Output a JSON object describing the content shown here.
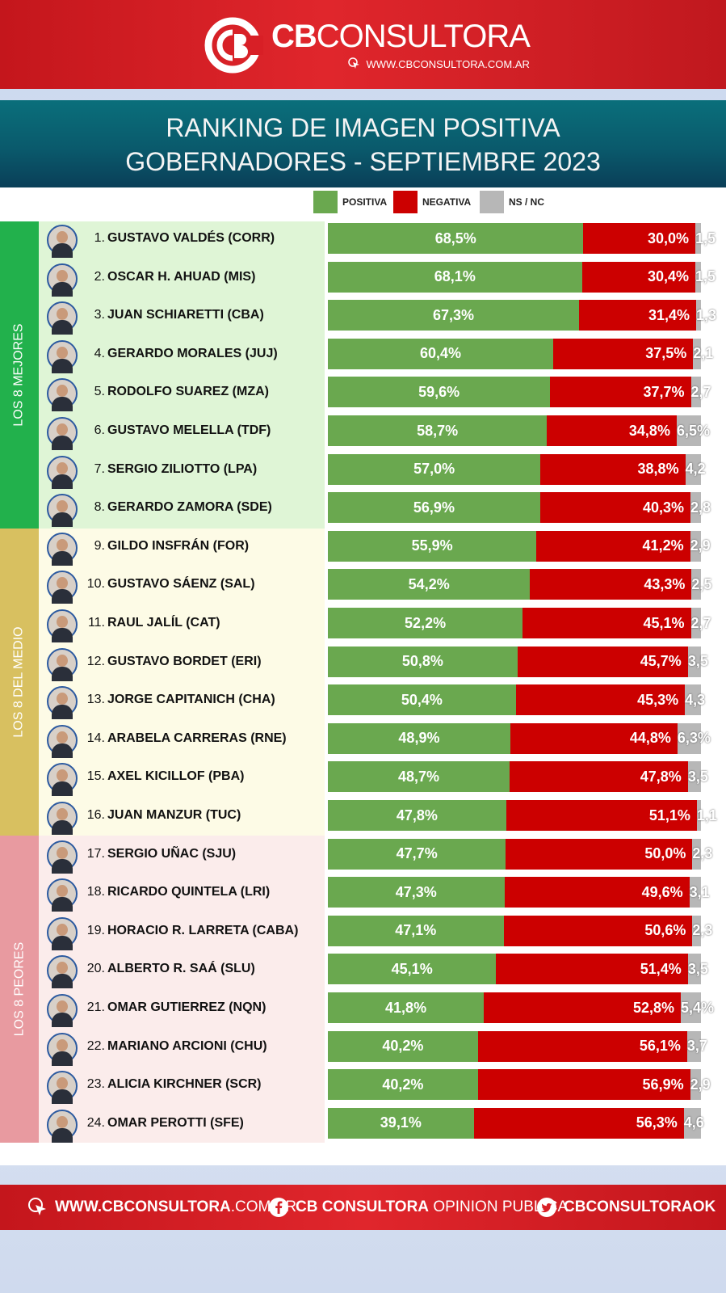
{
  "header": {
    "brand_bold": "CB",
    "brand_light": "CONSULTORA",
    "url": "WWW.CBCONSULTORA.COM.AR"
  },
  "title": {
    "line1": "RANKING DE IMAGEN POSITIVA",
    "line2": "GOBERNADORES - SEPTIEMBRE 2023"
  },
  "legend": [
    {
      "label": "POSITIVA",
      "color": "#6aa84f"
    },
    {
      "label": "NEGATIVA",
      "color": "#cc0000"
    },
    {
      "label": "NS / NC",
      "color": "#b7b7b7"
    }
  ],
  "groups": [
    {
      "label": "LOS 8 MEJORES",
      "side_color": "#22b14c",
      "bg_color": "#dff5d6"
    },
    {
      "label": "LOS 8 DEL MEDIO",
      "side_color": "#d8c060",
      "bg_color": "#fdfbe6"
    },
    {
      "label": "LOS 8 PEORES",
      "side_color": "#e89aa0",
      "bg_color": "#fbeceb"
    }
  ],
  "chart_data": {
    "type": "bar",
    "stacked": true,
    "orientation": "horizontal",
    "series_names": [
      "POSITIVA",
      "NEGATIVA",
      "NS / NC"
    ],
    "rows": [
      {
        "rank": "1.",
        "name": "GUSTAVO VALDÉS (CORR)",
        "pos": 68.5,
        "neg": 30.0,
        "ns": 1.5,
        "pos_label": "68,5%",
        "neg_label": "30,0%",
        "ns_label": "1,5"
      },
      {
        "rank": "2.",
        "name": "OSCAR H. AHUAD (MIS)",
        "pos": 68.1,
        "neg": 30.4,
        "ns": 1.5,
        "pos_label": "68,1%",
        "neg_label": "30,4%",
        "ns_label": "1,5"
      },
      {
        "rank": "3.",
        "name": "JUAN SCHIARETTI (CBA)",
        "pos": 67.3,
        "neg": 31.4,
        "ns": 1.3,
        "pos_label": "67,3%",
        "neg_label": "31,4%",
        "ns_label": "1,3"
      },
      {
        "rank": "4.",
        "name": "GERARDO MORALES (JUJ)",
        "pos": 60.4,
        "neg": 37.5,
        "ns": 2.1,
        "pos_label": "60,4%",
        "neg_label": "37,5%",
        "ns_label": "2,1"
      },
      {
        "rank": "5.",
        "name": "RODOLFO SUAREZ (MZA)",
        "pos": 59.6,
        "neg": 37.7,
        "ns": 2.7,
        "pos_label": "59,6%",
        "neg_label": "37,7%",
        "ns_label": "2,7"
      },
      {
        "rank": "6.",
        "name": "GUSTAVO MELELLA (TDF)",
        "pos": 58.7,
        "neg": 34.8,
        "ns": 6.5,
        "pos_label": "58,7%",
        "neg_label": "34,8%",
        "ns_label": "6,5%"
      },
      {
        "rank": "7.",
        "name": "SERGIO ZILIOTTO (LPA)",
        "pos": 57.0,
        "neg": 38.8,
        "ns": 4.2,
        "pos_label": "57,0%",
        "neg_label": "38,8%",
        "ns_label": "4,2"
      },
      {
        "rank": "8.",
        "name": "GERARDO ZAMORA (SDE)",
        "pos": 56.9,
        "neg": 40.3,
        "ns": 2.8,
        "pos_label": "56,9%",
        "neg_label": "40,3%",
        "ns_label": "2,8"
      },
      {
        "rank": "9.",
        "name": "GILDO INSFRÁN (FOR)",
        "pos": 55.9,
        "neg": 41.2,
        "ns": 2.9,
        "pos_label": "55,9%",
        "neg_label": "41,2%",
        "ns_label": "2,9"
      },
      {
        "rank": "10.",
        "name": "GUSTAVO SÁENZ (SAL)",
        "pos": 54.2,
        "neg": 43.3,
        "ns": 2.5,
        "pos_label": "54,2%",
        "neg_label": "43,3%",
        "ns_label": "2,5"
      },
      {
        "rank": "11.",
        "name": "RAUL JALÍL (CAT)",
        "pos": 52.2,
        "neg": 45.1,
        "ns": 2.7,
        "pos_label": "52,2%",
        "neg_label": "45,1%",
        "ns_label": "2,7"
      },
      {
        "rank": "12.",
        "name": "GUSTAVO BORDET (ERI)",
        "pos": 50.8,
        "neg": 45.7,
        "ns": 3.5,
        "pos_label": "50,8%",
        "neg_label": "45,7%",
        "ns_label": "3,5"
      },
      {
        "rank": "13.",
        "name": "JORGE CAPITANICH (CHA)",
        "pos": 50.4,
        "neg": 45.3,
        "ns": 4.3,
        "pos_label": "50,4%",
        "neg_label": "45,3%",
        "ns_label": "4,3"
      },
      {
        "rank": "14.",
        "name": "ARABELA CARRERAS (RNE)",
        "pos": 48.9,
        "neg": 44.8,
        "ns": 6.3,
        "pos_label": "48,9%",
        "neg_label": "44,8%",
        "ns_label": "6,3%"
      },
      {
        "rank": "15.",
        "name": "AXEL KICILLOF (PBA)",
        "pos": 48.7,
        "neg": 47.8,
        "ns": 3.5,
        "pos_label": "48,7%",
        "neg_label": "47,8%",
        "ns_label": "3,5"
      },
      {
        "rank": "16.",
        "name": "JUAN MANZUR (TUC)",
        "pos": 47.8,
        "neg": 51.1,
        "ns": 1.1,
        "pos_label": "47,8%",
        "neg_label": "51,1%",
        "ns_label": "1,1"
      },
      {
        "rank": "17.",
        "name": "SERGIO UÑAC (SJU)",
        "pos": 47.7,
        "neg": 50.0,
        "ns": 2.3,
        "pos_label": "47,7%",
        "neg_label": "50,0%",
        "ns_label": "2,3"
      },
      {
        "rank": "18.",
        "name": "RICARDO QUINTELA (LRI)",
        "pos": 47.3,
        "neg": 49.6,
        "ns": 3.1,
        "pos_label": "47,3%",
        "neg_label": "49,6%",
        "ns_label": "3,1"
      },
      {
        "rank": "19.",
        "name": "HORACIO R. LARRETA (CABA)",
        "pos": 47.1,
        "neg": 50.6,
        "ns": 2.3,
        "pos_label": "47,1%",
        "neg_label": "50,6%",
        "ns_label": "2,3"
      },
      {
        "rank": "20.",
        "name": "ALBERTO R. SAÁ (SLU)",
        "pos": 45.1,
        "neg": 51.4,
        "ns": 3.5,
        "pos_label": "45,1%",
        "neg_label": "51,4%",
        "ns_label": "3,5"
      },
      {
        "rank": "21.",
        "name": "OMAR GUTIERREZ (NQN)",
        "pos": 41.8,
        "neg": 52.8,
        "ns": 5.4,
        "pos_label": "41,8%",
        "neg_label": "52,8%",
        "ns_label": "5,4%"
      },
      {
        "rank": "22.",
        "name": "MARIANO ARCIONI (CHU)",
        "pos": 40.2,
        "neg": 56.1,
        "ns": 3.7,
        "pos_label": "40,2%",
        "neg_label": "56,1%",
        "ns_label": "3,7"
      },
      {
        "rank": "23.",
        "name": "ALICIA KIRCHNER (SCR)",
        "pos": 40.2,
        "neg": 56.9,
        "ns": 2.9,
        "pos_label": "40,2%",
        "neg_label": "56,9%",
        "ns_label": "2,9"
      },
      {
        "rank": "24.",
        "name": "OMAR PEROTTI (SFE)",
        "pos": 39.1,
        "neg": 56.3,
        "ns": 4.6,
        "pos_label": "39,1%",
        "neg_label": "56,3%",
        "ns_label": "4,6"
      }
    ]
  },
  "footer": {
    "web_bold": "WWW.CBCONSULTORA",
    "web_light": ".COM.AR",
    "fb_bold": "CB CONSULTORA",
    "fb_light": "OPINION PUBLICA",
    "tw_bold": "CBCONSULTORAOK"
  }
}
